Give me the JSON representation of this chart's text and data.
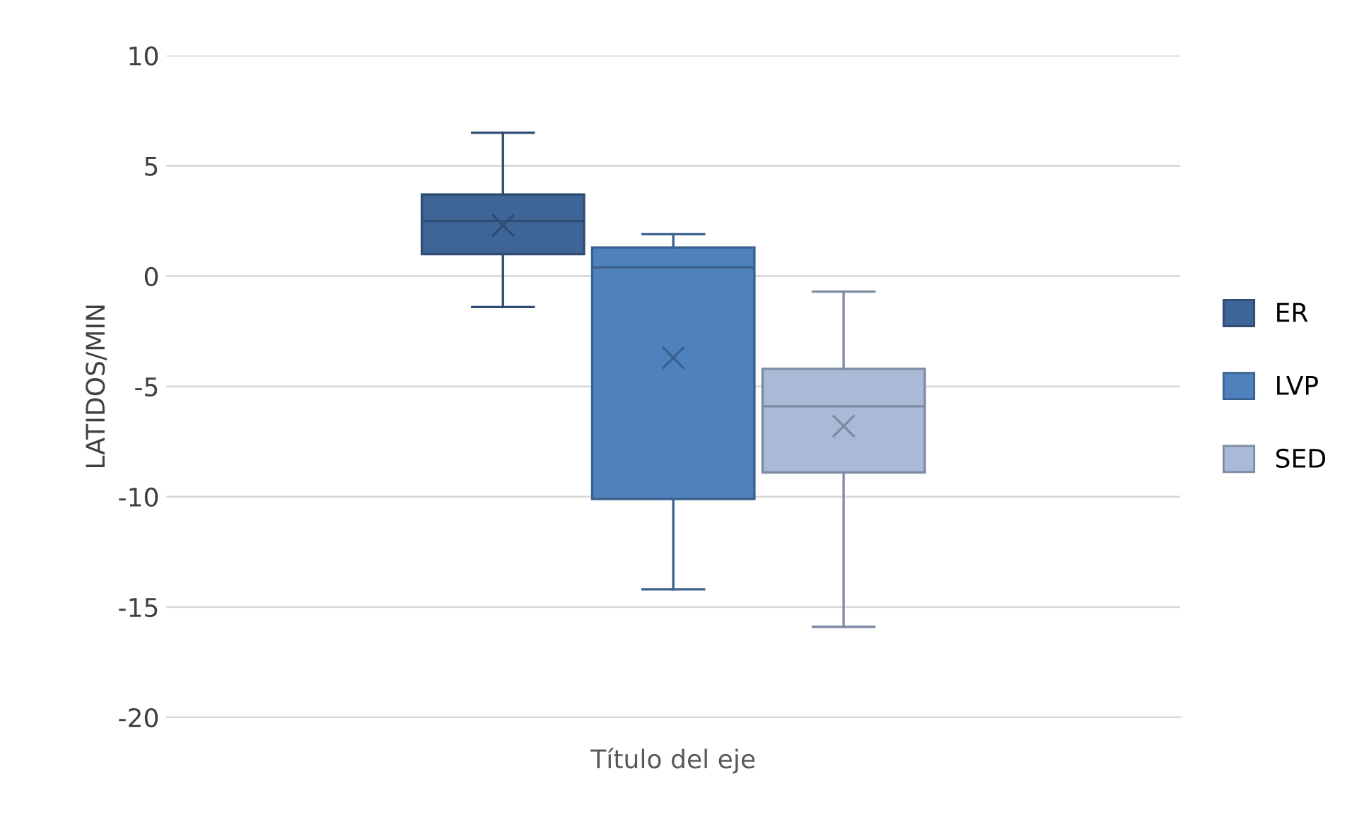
{
  "chart_data": {
    "type": "box",
    "xlabel": "Título del eje",
    "ylabel": "LATIDOS/MIN",
    "categories": [
      null
    ],
    "ylim": [
      -20,
      10
    ],
    "yticks": [
      -20,
      -15,
      -10,
      -5,
      0,
      5,
      10
    ],
    "grid": "y",
    "legend": "right",
    "series": [
      {
        "name": "ER",
        "color": "#3f6598",
        "boxes": [
          {
            "low": -1.4,
            "q1": 1,
            "median": 2.5,
            "q3": 3.7,
            "high": 6.5,
            "mean": 2.3
          }
        ]
      },
      {
        "name": "LVP",
        "color": "#4f81bd",
        "boxes": [
          {
            "low": -14.2,
            "q1": -10.1,
            "median": 0.4,
            "q3": 1.3,
            "high": 1.9,
            "mean": -3.7
          }
        ]
      },
      {
        "name": "SED",
        "color": "#a9b9d8",
        "boxes": [
          {
            "low": -15.9,
            "q1": -8.9,
            "median": -5.9,
            "q3": -4.2,
            "high": -0.7,
            "mean": -6.8
          }
        ]
      }
    ]
  }
}
